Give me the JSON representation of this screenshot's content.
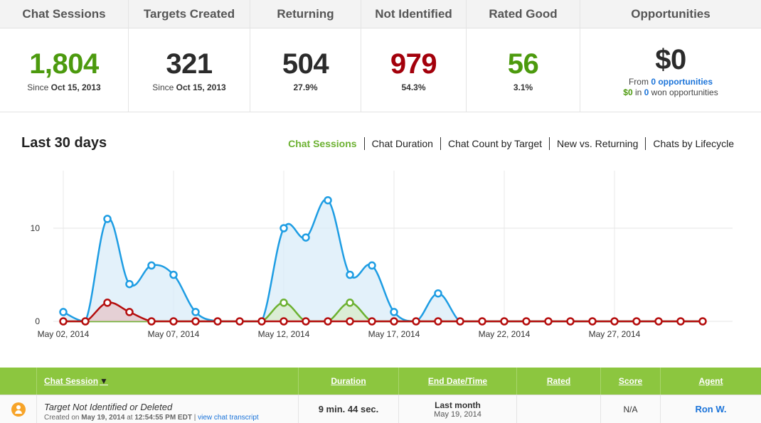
{
  "stats": [
    {
      "label": "Chat Sessions",
      "value": "1,804",
      "sub_prefix": "Since ",
      "sub_bold": "Oct 15, 2013",
      "color": "#4c9a0e"
    },
    {
      "label": "Targets Created",
      "value": "321",
      "sub_prefix": "Since ",
      "sub_bold": "Oct 15, 2013",
      "color": "#2b2b2b"
    },
    {
      "label": "Returning",
      "value": "504",
      "sub_prefix": "",
      "sub_bold": "27.9%",
      "color": "#2b2b2b"
    },
    {
      "label": "Not Identified",
      "value": "979",
      "sub_prefix": "",
      "sub_bold": "54.3%",
      "color": "#a3000b"
    },
    {
      "label": "Rated Good",
      "value": "56",
      "sub_prefix": "",
      "sub_bold": "3.1%",
      "color": "#4c9a0e"
    }
  ],
  "opportunities": {
    "label": "Opportunities",
    "value": "$0",
    "line1_prefix": "From ",
    "line1_count": "0",
    "line1_link": "opportunities",
    "line2_amount": "$0",
    "line2_mid": " in ",
    "line2_count": "0",
    "line2_suffix": " won opportunities"
  },
  "chart_section": {
    "title": "Last 30 days",
    "tabs": [
      "Chat Sessions",
      "Chat Duration",
      "Chat Count by Target",
      "New vs. Returning",
      "Chats by Lifecycle"
    ],
    "active_tab": "Chat Sessions"
  },
  "chart_data": {
    "type": "area",
    "x_ticks": [
      "May 02, 2014",
      "May 07, 2014",
      "May 12, 2014",
      "May 17, 2014",
      "May 22, 2014",
      "May 27, 2014"
    ],
    "y_ticks": [
      "0",
      "10"
    ],
    "ylim": [
      0,
      15
    ],
    "grid": true,
    "x": [
      "May 02",
      "May 03",
      "May 04",
      "May 05",
      "May 06",
      "May 07",
      "May 08",
      "May 09",
      "May 10",
      "May 11",
      "May 12",
      "May 13",
      "May 14",
      "May 15",
      "May 16",
      "May 17",
      "May 18",
      "May 19",
      "May 20",
      "May 21",
      "May 22",
      "May 23",
      "May 24",
      "May 25",
      "May 26",
      "May 27",
      "May 28",
      "May 29",
      "May 30",
      "May 31"
    ],
    "series": [
      {
        "color": "#1e9de3",
        "fill": "#d9ecf8",
        "values": [
          1,
          0,
          11,
          4,
          6,
          5,
          1,
          0,
          0,
          0,
          10,
          9,
          13,
          5,
          6,
          1,
          0,
          3,
          0,
          0,
          0,
          0,
          0,
          0,
          0,
          0,
          0,
          0,
          0,
          0
        ]
      },
      {
        "color": "#6cb131",
        "fill": "#d8ebc9",
        "values": [
          0,
          0,
          0,
          0,
          0,
          0,
          0,
          0,
          0,
          0,
          2,
          0,
          0,
          2,
          0,
          0,
          0,
          0,
          0,
          0,
          0,
          0,
          0,
          0,
          0,
          0,
          0,
          0,
          0,
          0
        ]
      },
      {
        "color": "#b50d0d",
        "fill": "#e6c4c8",
        "values": [
          0,
          0,
          2,
          1,
          0,
          0,
          0,
          0,
          0,
          0,
          0,
          0,
          0,
          0,
          0,
          0,
          0,
          0,
          0,
          0,
          0,
          0,
          0,
          0,
          0,
          0,
          0,
          0,
          0,
          0
        ]
      }
    ]
  },
  "table": {
    "headers": {
      "session": "Chat Session",
      "duration": "Duration",
      "end": "End Date/Time",
      "rated": "Rated",
      "score": "Score",
      "agent": "Agent"
    },
    "sort_indicator": "▼",
    "rows": [
      {
        "icon": "person-icon",
        "title": "Target Not Identified or Deleted",
        "created_prefix": "Created on ",
        "created_date": "May 19, 2014",
        "created_mid": " at ",
        "created_time": "12:54:55 PM EDT",
        "link_sep": " | ",
        "link": "view chat transcript",
        "duration": "9 min. 44 sec.",
        "end_main": "Last month",
        "end_sub": "May 19, 2014",
        "rated": "",
        "score": "N/A",
        "agent": "Ron W."
      }
    ]
  }
}
